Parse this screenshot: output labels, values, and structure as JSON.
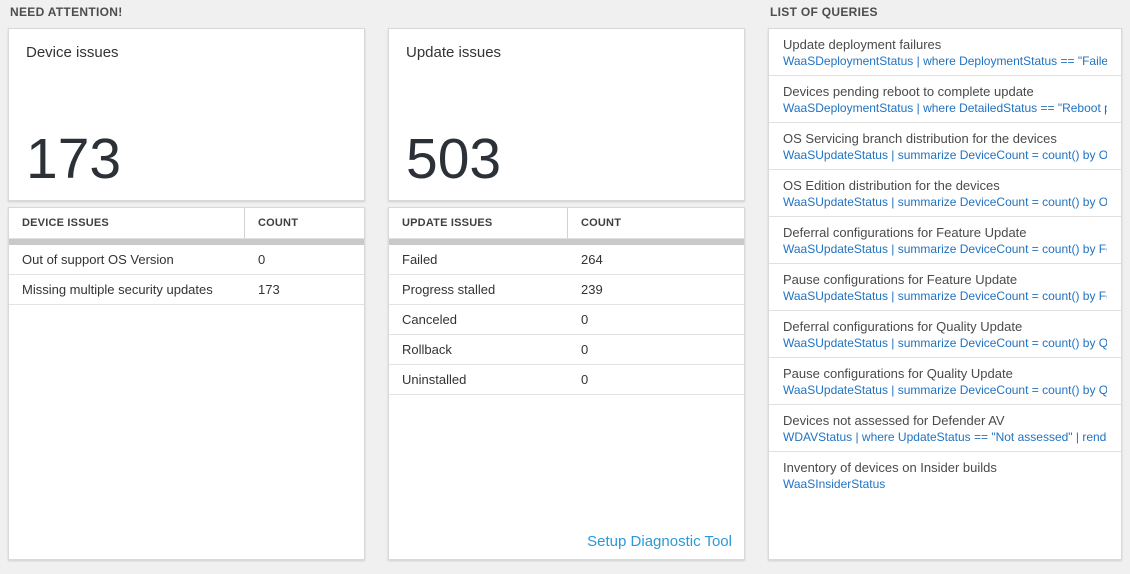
{
  "need_attention": {
    "section_title": "NEED ATTENTION!",
    "device_tile": {
      "title": "Device issues",
      "count": "173",
      "table": {
        "headers": [
          "DEVICE ISSUES",
          "COUNT"
        ],
        "rows": [
          {
            "label": "Out of support OS Version",
            "count": "0"
          },
          {
            "label": "Missing multiple security updates",
            "count": "173"
          }
        ]
      }
    },
    "update_tile": {
      "title": "Update issues",
      "count": "503",
      "table": {
        "headers": [
          "UPDATE ISSUES",
          "COUNT"
        ],
        "rows": [
          {
            "label": "Failed",
            "count": "264"
          },
          {
            "label": "Progress stalled",
            "count": "239"
          },
          {
            "label": "Canceled",
            "count": "0"
          },
          {
            "label": "Rollback",
            "count": "0"
          },
          {
            "label": "Uninstalled",
            "count": "0"
          }
        ]
      },
      "footer_link": "Setup Diagnostic Tool"
    }
  },
  "queries": {
    "section_title": "LIST OF QUERIES",
    "items": [
      {
        "title": "Update deployment failures",
        "query": "WaaSDeploymentStatus | where DeploymentStatus == \"Failed\" |..."
      },
      {
        "title": "Devices pending reboot to complete update",
        "query": "WaaSDeploymentStatus | where DetailedStatus == \"Reboot pend..."
      },
      {
        "title": "OS Servicing branch distribution for the devices",
        "query": "WaaSUpdateStatus | summarize DeviceCount = count() by OSSer..."
      },
      {
        "title": "OS Edition distribution for the devices",
        "query": "WaaSUpdateStatus | summarize DeviceCount = count() by OSEdit..."
      },
      {
        "title": "Deferral configurations for Feature Update",
        "query": "WaaSUpdateStatus | summarize DeviceCount = count() by Featur..."
      },
      {
        "title": "Pause configurations for Feature Update",
        "query": "WaaSUpdateStatus | summarize DeviceCount = count() by Featur..."
      },
      {
        "title": "Deferral configurations for Quality Update",
        "query": "WaaSUpdateStatus | summarize DeviceCount = count() by Qualit..."
      },
      {
        "title": "Pause configurations for Quality Update",
        "query": "WaaSUpdateStatus | summarize DeviceCount = count() by Qualit..."
      },
      {
        "title": "Devices not assessed for Defender AV",
        "query": "WDAVStatus | where UpdateStatus == \"Not assessed\" | render ta..."
      },
      {
        "title": "Inventory of devices on Insider builds",
        "query": "WaaSInsiderStatus"
      }
    ]
  },
  "colors": {
    "count_number": "#2b3137",
    "query_link_blue": "#2173c2",
    "footer_link_blue": "#2b99d8",
    "page_background": "#f0f0f0"
  }
}
